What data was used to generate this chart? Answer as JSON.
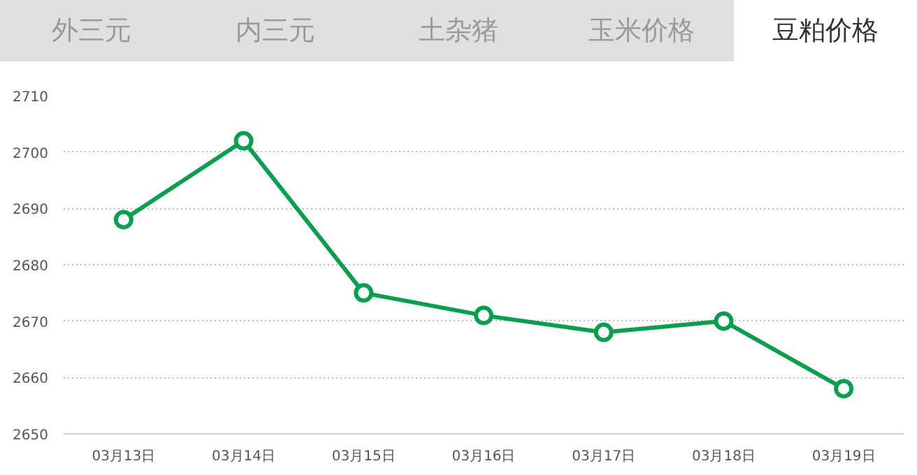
{
  "chart_data": {
    "type": "line",
    "title": "豆粕价格",
    "annotations": [
      "外三元",
      "内三元",
      "土杂猪",
      "玉米价格"
    ],
    "categories": [
      "03月13日",
      "03月14日",
      "03月15日",
      "03月16日",
      "03月17日",
      "03月18日",
      "03月19日"
    ],
    "series": [
      {
        "color": "#0b9e4e",
        "values": [
          2688,
          2702,
          2675,
          2671,
          2668,
          2670,
          2658
        ]
      }
    ],
    "ylim": [
      2650,
      2710
    ],
    "yticks": [
      2650,
      2660,
      2670,
      2680,
      2690,
      2700,
      2710
    ],
    "grid": "y",
    "marker": "circle",
    "line_style": "solid"
  }
}
